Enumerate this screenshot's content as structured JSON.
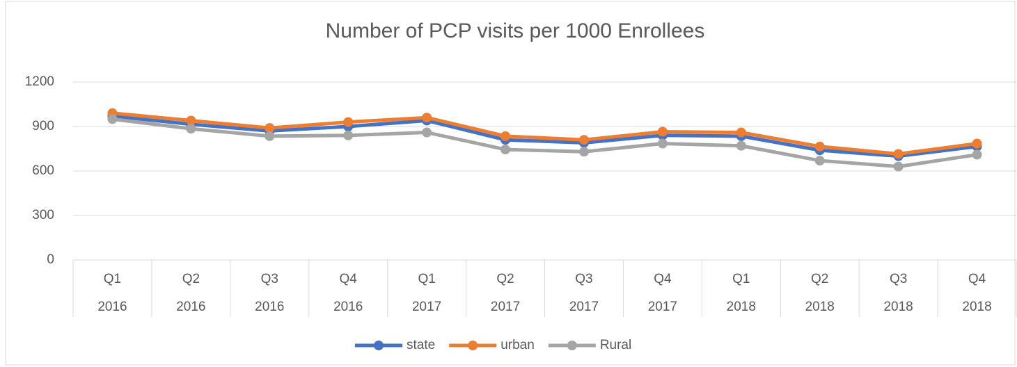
{
  "chart_data": {
    "type": "line",
    "title": "Number of PCP visits per 1000 Enrollees",
    "categories": [
      [
        "Q1",
        "2016"
      ],
      [
        "Q2",
        "2016"
      ],
      [
        "Q3",
        "2016"
      ],
      [
        "Q4",
        "2016"
      ],
      [
        "Q1",
        "2017"
      ],
      [
        "Q2",
        "2017"
      ],
      [
        "Q3",
        "2017"
      ],
      [
        "Q4",
        "2017"
      ],
      [
        "Q1",
        "2018"
      ],
      [
        "Q2",
        "2018"
      ],
      [
        "Q3",
        "2018"
      ],
      [
        "Q4",
        "2018"
      ]
    ],
    "series": [
      {
        "name": "state",
        "color": "#4472c4",
        "values": [
          970,
          915,
          870,
          900,
          940,
          810,
          790,
          840,
          835,
          740,
          700,
          765
        ]
      },
      {
        "name": "urban",
        "color": "#ed7d31",
        "values": [
          990,
          940,
          890,
          930,
          960,
          835,
          810,
          865,
          860,
          765,
          715,
          785
        ]
      },
      {
        "name": "Rural",
        "color": "#a5a5a5",
        "values": [
          950,
          885,
          835,
          840,
          860,
          745,
          730,
          785,
          770,
          670,
          630,
          710
        ]
      }
    ],
    "ylim": [
      0,
      1200
    ],
    "yticks": [
      0,
      300,
      600,
      900,
      1200
    ],
    "grid": true,
    "legend": "bottom"
  }
}
